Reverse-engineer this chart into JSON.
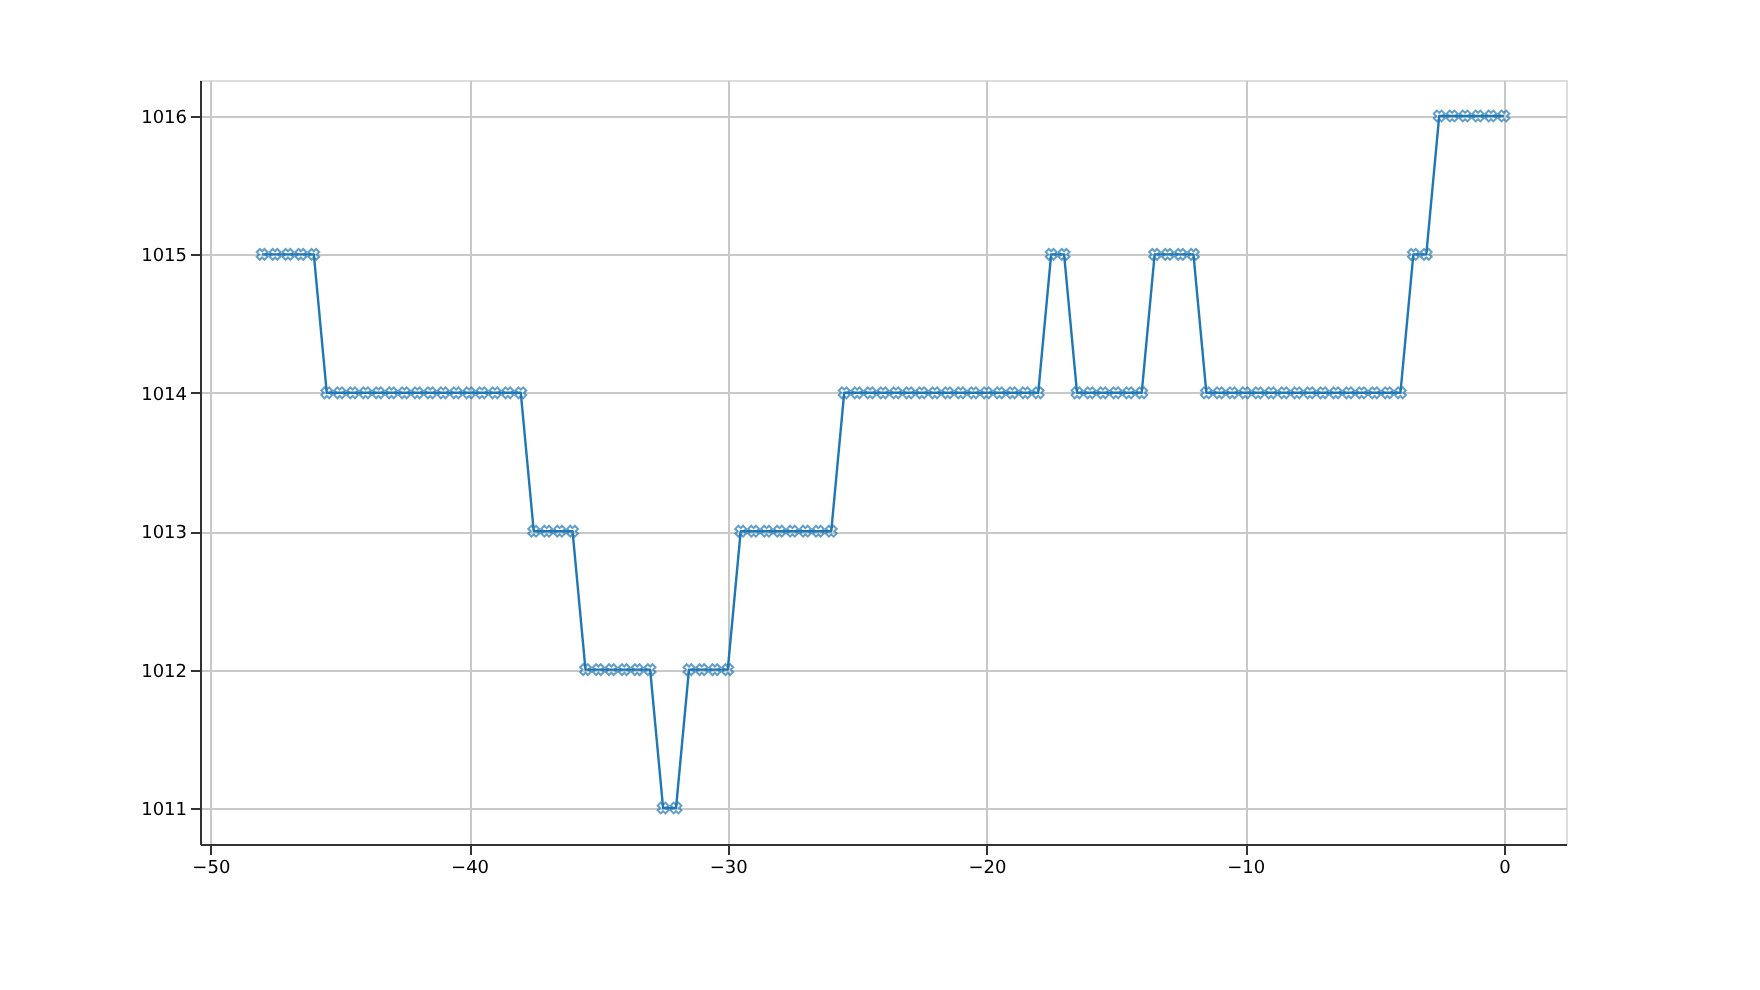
{
  "chart_data": {
    "type": "line",
    "x": [
      -48,
      -47.5,
      -47,
      -46.5,
      -46,
      -45.5,
      -45,
      -44.5,
      -44,
      -43.5,
      -43,
      -42.5,
      -42,
      -41.5,
      -41,
      -40.5,
      -40,
      -39.5,
      -39,
      -38.5,
      -38,
      -37.5,
      -37,
      -36.5,
      -36,
      -35.5,
      -35,
      -34.5,
      -34,
      -33.5,
      -33,
      -32.5,
      -32,
      -31.5,
      -31,
      -30.5,
      -30,
      -29.5,
      -29,
      -28.5,
      -28,
      -27.5,
      -27,
      -26.5,
      -26,
      -25.5,
      -25,
      -24.5,
      -24,
      -23.5,
      -23,
      -22.5,
      -22,
      -21.5,
      -21,
      -20.5,
      -20,
      -19.5,
      -19,
      -18.5,
      -18,
      -17.5,
      -17,
      -16.5,
      -16,
      -15.5,
      -15,
      -14.5,
      -14,
      -13.5,
      -13,
      -12.5,
      -12,
      -11.5,
      -11,
      -10.5,
      -10,
      -9.5,
      -9,
      -8.5,
      -8,
      -7.5,
      -7,
      -6.5,
      -6,
      -5.5,
      -5,
      -4.5,
      -4,
      -3.5,
      -3,
      -2.5,
      -2,
      -1.5,
      -1,
      -0.5,
      0
    ],
    "series": [
      {
        "color": "#1f77b4",
        "values": [
          1015,
          1015,
          1015,
          1015,
          1015,
          1014,
          1014,
          1014,
          1014,
          1014,
          1014,
          1014,
          1014,
          1014,
          1014,
          1014,
          1014,
          1014,
          1014,
          1014,
          1014,
          1013,
          1013,
          1013,
          1013,
          1012,
          1012,
          1012,
          1012,
          1012,
          1012,
          1011,
          1011,
          1012,
          1012,
          1012,
          1012,
          1013,
          1013,
          1013,
          1013,
          1013,
          1013,
          1013,
          1013,
          1014,
          1014,
          1014,
          1014,
          1014,
          1014,
          1014,
          1014,
          1014,
          1014,
          1014,
          1014,
          1014,
          1014,
          1014,
          1014,
          1015,
          1015,
          1014,
          1014,
          1014,
          1014,
          1014,
          1014,
          1015,
          1015,
          1015,
          1015,
          1014,
          1014,
          1014,
          1014,
          1014,
          1014,
          1014,
          1014,
          1014,
          1014,
          1014,
          1014,
          1014,
          1014,
          1014,
          1014,
          1015,
          1015,
          1016,
          1016,
          1016,
          1016,
          1016,
          1016
        ]
      }
    ],
    "xlim": [
      -50.4,
      2.4
    ],
    "ylim": [
      1010.74,
      1016.26
    ],
    "xticks": [
      -50,
      -40,
      -30,
      -20,
      -10,
      0
    ],
    "yticks": [
      1011,
      1012,
      1013,
      1014,
      1015,
      1016
    ],
    "grid": true,
    "marker": "cross",
    "line_style": "solid"
  }
}
